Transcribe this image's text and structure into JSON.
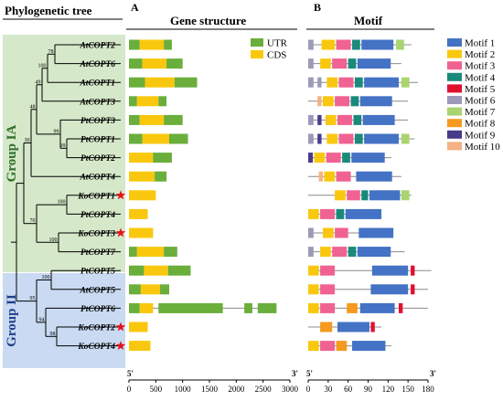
{
  "headers": {
    "tree": "Phylogenetic tree",
    "panel_a_letter": "A",
    "panel_a_title": "Gene structure",
    "panel_b_letter": "B",
    "panel_b_title": "Motif"
  },
  "groups": [
    {
      "label": "Group IA",
      "color": "#d5e8c9"
    },
    {
      "label": "Group II",
      "color": "#c9daf2"
    }
  ],
  "genes": [
    {
      "name": "AtCOPT2",
      "star": false,
      "structure": [
        [
          "UTR",
          0,
          200
        ],
        [
          "CDS",
          200,
          650
        ],
        [
          "UTR",
          650,
          800
        ]
      ],
      "motif_len": 155,
      "motifs": [
        [
          6,
          0,
          8
        ],
        [
          2,
          20,
          40
        ],
        [
          3,
          42,
          64
        ],
        [
          4,
          66,
          78
        ],
        [
          1,
          80,
          128
        ],
        [
          7,
          132,
          144
        ]
      ]
    },
    {
      "name": "AtCOPT6",
      "star": false,
      "structure": [
        [
          "UTR",
          0,
          250
        ],
        [
          "CDS",
          250,
          700
        ],
        [
          "UTR",
          700,
          1000
        ]
      ],
      "motif_len": 140,
      "motifs": [
        [
          6,
          0,
          8
        ],
        [
          2,
          18,
          34
        ],
        [
          3,
          36,
          58
        ],
        [
          4,
          60,
          72
        ],
        [
          1,
          74,
          124
        ]
      ]
    },
    {
      "name": "AtCOPT1",
      "star": false,
      "structure": [
        [
          "UTR",
          0,
          300
        ],
        [
          "CDS",
          300,
          850
        ],
        [
          "UTR",
          850,
          1270
        ]
      ],
      "motif_len": 165,
      "motifs": [
        [
          6,
          0,
          8
        ],
        [
          6,
          14,
          20
        ],
        [
          2,
          28,
          44
        ],
        [
          3,
          46,
          68
        ],
        [
          4,
          70,
          82
        ],
        [
          1,
          84,
          136
        ],
        [
          7,
          140,
          152
        ]
      ]
    },
    {
      "name": "AtCOPT3",
      "star": false,
      "structure": [
        [
          "UTR",
          0,
          150
        ],
        [
          "CDS",
          150,
          550
        ],
        [
          "UTR",
          550,
          700
        ]
      ],
      "motif_len": 150,
      "motifs": [
        [
          10,
          14,
          20
        ],
        [
          2,
          22,
          38
        ],
        [
          3,
          40,
          62
        ],
        [
          4,
          64,
          76
        ],
        [
          1,
          78,
          126
        ]
      ]
    },
    {
      "name": "PtCOPT3",
      "star": false,
      "structure": [
        [
          "UTR",
          0,
          200
        ],
        [
          "CDS",
          200,
          650
        ],
        [
          "UTR",
          650,
          1000
        ]
      ],
      "motif_len": 150,
      "motifs": [
        [
          6,
          0,
          8
        ],
        [
          9,
          14,
          20
        ],
        [
          2,
          26,
          42
        ],
        [
          3,
          44,
          66
        ],
        [
          4,
          68,
          80
        ],
        [
          1,
          82,
          130
        ]
      ]
    },
    {
      "name": "PtCOPT1",
      "star": false,
      "structure": [
        [
          "UTR",
          0,
          250
        ],
        [
          "CDS",
          250,
          750
        ],
        [
          "UTR",
          750,
          1100
        ]
      ],
      "motif_len": 160,
      "motifs": [
        [
          6,
          0,
          8
        ],
        [
          9,
          14,
          20
        ],
        [
          2,
          28,
          44
        ],
        [
          3,
          46,
          68
        ],
        [
          4,
          70,
          82
        ],
        [
          1,
          84,
          136
        ],
        [
          7,
          140,
          152
        ]
      ]
    },
    {
      "name": "PtCOPT2",
      "star": false,
      "structure": [
        [
          "CDS",
          0,
          450
        ],
        [
          "UTR",
          450,
          800
        ]
      ],
      "motif_len": 125,
      "motifs": [
        [
          9,
          0,
          7
        ],
        [
          2,
          9,
          25
        ],
        [
          3,
          27,
          49
        ],
        [
          4,
          51,
          63
        ],
        [
          1,
          65,
          115
        ]
      ]
    },
    {
      "name": "AtCOPT4",
      "star": false,
      "structure": [
        [
          "CDS",
          0,
          480
        ],
        [
          "UTR",
          480,
          700
        ]
      ],
      "motif_len": 140,
      "motifs": [
        [
          10,
          16,
          22
        ],
        [
          2,
          24,
          40
        ],
        [
          3,
          42,
          64
        ],
        [
          1,
          72,
          126
        ]
      ]
    },
    {
      "name": "KoCOPT1",
      "star": true,
      "structure": [
        [
          "CDS",
          0,
          500
        ]
      ],
      "motif_len": 155,
      "motifs": [
        [
          2,
          40,
          56
        ],
        [
          3,
          58,
          78
        ],
        [
          4,
          80,
          90
        ],
        [
          1,
          92,
          138
        ],
        [
          7,
          140,
          152
        ]
      ]
    },
    {
      "name": "PtCOPT4",
      "star": false,
      "structure": [
        [
          "CDS",
          0,
          350
        ]
      ],
      "motif_len": 110,
      "motifs": [
        [
          2,
          0,
          16
        ],
        [
          3,
          18,
          40
        ],
        [
          4,
          42,
          54
        ],
        [
          1,
          56,
          110
        ]
      ]
    },
    {
      "name": "KoCOPT3",
      "star": true,
      "structure": [
        [
          "CDS",
          0,
          450
        ]
      ],
      "motif_len": 125,
      "motifs": [
        [
          6,
          0,
          8
        ],
        [
          2,
          22,
          38
        ],
        [
          3,
          40,
          60
        ],
        [
          1,
          76,
          128
        ]
      ]
    },
    {
      "name": "PtCOPT7",
      "star": false,
      "structure": [
        [
          "UTR",
          0,
          150
        ],
        [
          "CDS",
          150,
          650
        ],
        [
          "UTR",
          650,
          900
        ]
      ],
      "motif_len": 145,
      "motifs": [
        [
          6,
          0,
          8
        ],
        [
          2,
          18,
          34
        ],
        [
          3,
          36,
          58
        ],
        [
          4,
          60,
          72
        ],
        [
          1,
          74,
          124
        ]
      ]
    },
    {
      "name": "PtCOPT5",
      "star": false,
      "structure": [
        [
          "UTR",
          0,
          280
        ],
        [
          "CDS",
          280,
          730
        ],
        [
          "UTR",
          730,
          1150
        ]
      ],
      "motif_len": 185,
      "motifs": [
        [
          2,
          0,
          16
        ],
        [
          3,
          18,
          40
        ],
        [
          1,
          96,
          150
        ],
        [
          5,
          154,
          160
        ]
      ]
    },
    {
      "name": "AtCOPT5",
      "star": false,
      "structure": [
        [
          "UTR",
          0,
          220
        ],
        [
          "CDS",
          220,
          580
        ],
        [
          "UTR",
          580,
          750
        ]
      ],
      "motif_len": 180,
      "motifs": [
        [
          2,
          0,
          16
        ],
        [
          3,
          18,
          40
        ],
        [
          1,
          94,
          150
        ],
        [
          5,
          154,
          160
        ]
      ]
    },
    {
      "name": "PtCOPT6",
      "star": false,
      "structure": [
        [
          "UTR",
          0,
          200
        ],
        [
          "CDS",
          200,
          450
        ],
        [
          "UTR",
          550,
          1750
        ],
        [
          "UTR",
          2150,
          2300
        ],
        [
          "UTR",
          2400,
          2750
        ]
      ],
      "motif_len": 180,
      "motifs": [
        [
          2,
          0,
          16
        ],
        [
          3,
          18,
          40
        ],
        [
          8,
          58,
          74
        ],
        [
          1,
          78,
          130
        ],
        [
          5,
          136,
          142
        ]
      ]
    },
    {
      "name": "KoCOPT2",
      "star": true,
      "structure": [
        [
          "CDS",
          0,
          350
        ]
      ],
      "motif_len": 110,
      "motifs": [
        [
          8,
          18,
          36
        ],
        [
          1,
          44,
          92
        ],
        [
          5,
          94,
          100
        ]
      ]
    },
    {
      "name": "KoCOPT4",
      "star": true,
      "structure": [
        [
          "CDS",
          0,
          400
        ]
      ],
      "motif_len": 125,
      "motifs": [
        [
          2,
          0,
          16
        ],
        [
          3,
          18,
          40
        ],
        [
          8,
          42,
          58
        ],
        [
          1,
          66,
          116
        ]
      ]
    }
  ],
  "bootstrap": [
    "78",
    "100",
    "49",
    "99",
    "99",
    "30",
    "48",
    "100",
    "70",
    "100",
    "100",
    "94",
    "95",
    "98"
  ],
  "gene_legend": [
    {
      "label": "UTR",
      "color": "#6aae3b"
    },
    {
      "label": "CDS",
      "color": "#f9c80e"
    }
  ],
  "motif_legend": [
    {
      "label": "Motif 1",
      "color": "#4472c4"
    },
    {
      "label": "Motif 2",
      "color": "#f9c80e"
    },
    {
      "label": "Motif 3",
      "color": "#f06292"
    },
    {
      "label": "Motif 4",
      "color": "#1a8a7a"
    },
    {
      "label": "Motif 5",
      "color": "#e0102f"
    },
    {
      "label": "Motif 6",
      "color": "#9b9ab8"
    },
    {
      "label": "Motif 7",
      "color": "#a9d46f"
    },
    {
      "label": "Motif 8",
      "color": "#f59a1e"
    },
    {
      "label": "Motif 9",
      "color": "#4a3a8a"
    },
    {
      "label": "Motif 10",
      "color": "#f4b183"
    }
  ],
  "axis_a": {
    "end5": "5'",
    "end3": "3'",
    "max": 3000,
    "ticks": [
      "0",
      "500",
      "1000",
      "1500",
      "2000",
      "2500",
      "3000"
    ]
  },
  "axis_b": {
    "end5": "5'",
    "end3": "3'",
    "max": 180,
    "ticks": [
      "0",
      "30",
      "60",
      "90",
      "120",
      "150",
      "180"
    ]
  },
  "star_color": "#e8101a",
  "line_color": "#8c8c8c"
}
